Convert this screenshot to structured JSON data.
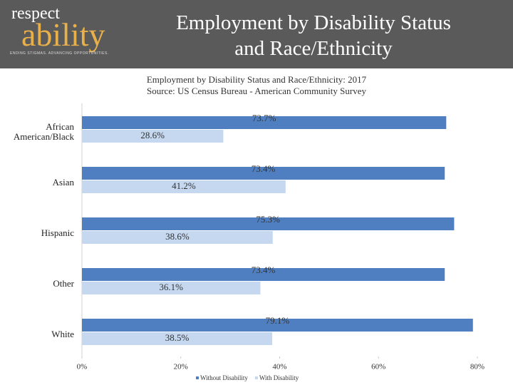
{
  "header": {
    "logo_top": "respect",
    "logo_main": "ability",
    "logo_tagline": "ENDING STIGMAS. ADVANCING OPPORTUNITIES."
  },
  "chart_data": {
    "type": "hbar",
    "header_title": [
      "Employment by Disability Status",
      "and Race/Ethnicity"
    ],
    "title": [
      "Employment by Disability Status and Race/Ethnicity: 2017",
      "Source: US Census Bureau - American Community Survey"
    ],
    "categories": [
      "African American/Black",
      "Asian",
      "Hispanic",
      "Other",
      "White"
    ],
    "series": [
      {
        "name": "Without Disability",
        "color": "#4f7fc0",
        "values": [
          73.7,
          73.4,
          75.3,
          73.4,
          79.1
        ],
        "value_labels": [
          "73.7%",
          "73.4%",
          "75.3%",
          "73.4%",
          "79.1%"
        ]
      },
      {
        "name": "With Disability",
        "color": "#c5d8ef",
        "values": [
          28.6,
          41.2,
          38.6,
          36.1,
          38.5
        ],
        "value_labels": [
          "28.6%",
          "41.2%",
          "38.6%",
          "36.1%",
          "38.5%"
        ]
      }
    ],
    "xlim": [
      0,
      80
    ],
    "xticks": [
      {
        "value": 0,
        "label": "0%"
      },
      {
        "value": 20,
        "label": "20%"
      },
      {
        "value": 40,
        "label": "40%"
      },
      {
        "value": 60,
        "label": "60%"
      },
      {
        "value": 80,
        "label": "80%"
      }
    ],
    "legend": "bottom"
  }
}
